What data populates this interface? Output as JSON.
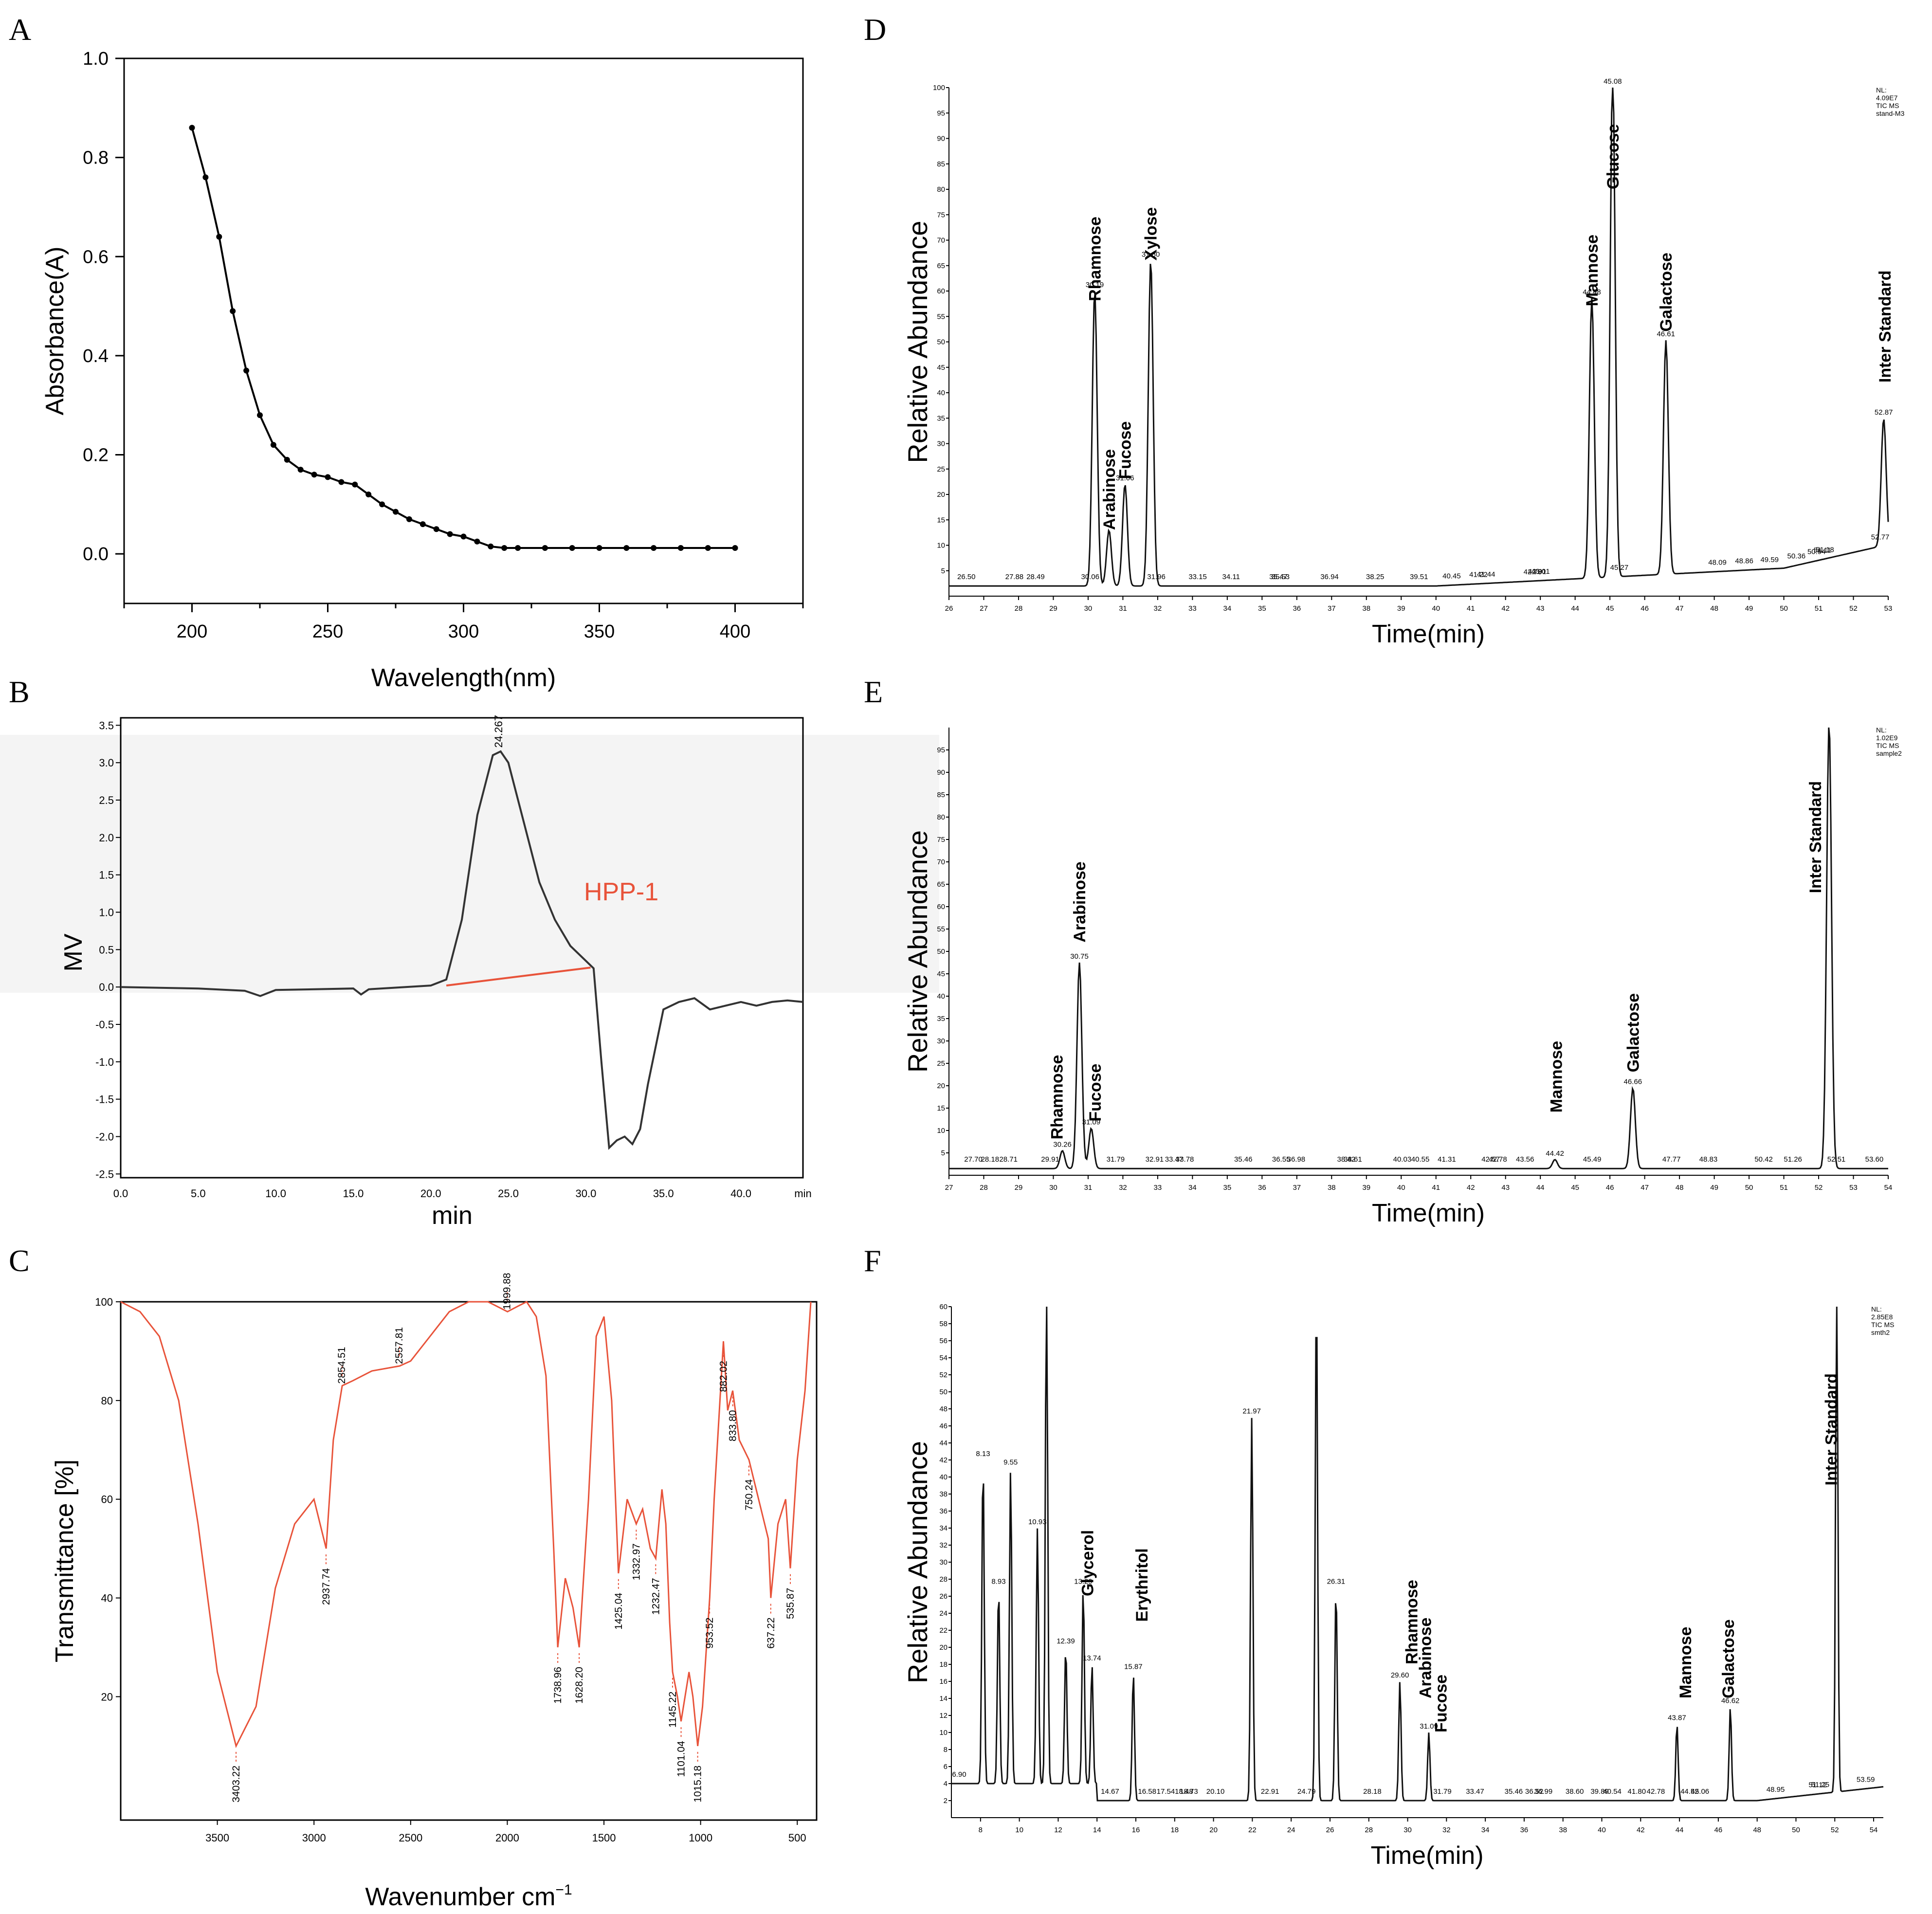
{
  "colors": {
    "ink": "#000000",
    "ir_red": "#e8533a",
    "grey_band": "#f3f3f3"
  },
  "chart_data": [
    {
      "panel": "A",
      "type": "line",
      "xlabel": "Wavelength(nm)",
      "ylabel": "Absorbance(A)",
      "xlim": [
        175,
        425
      ],
      "ylim": [
        -0.1,
        1.0
      ],
      "x_ticks": [
        "200",
        "250",
        "300",
        "350",
        "400"
      ],
      "y_ticks": [
        "0.0",
        "0.2",
        "0.4",
        "0.6",
        "0.8",
        "1.0"
      ],
      "markers": "filled-circles",
      "x": [
        200,
        205,
        210,
        215,
        220,
        225,
        230,
        235,
        240,
        245,
        250,
        255,
        260,
        265,
        270,
        275,
        280,
        285,
        290,
        295,
        300,
        305,
        310,
        315,
        320,
        330,
        340,
        350,
        360,
        370,
        380,
        390,
        400
      ],
      "y": [
        0.86,
        0.76,
        0.64,
        0.49,
        0.37,
        0.28,
        0.22,
        0.19,
        0.17,
        0.16,
        0.155,
        0.145,
        0.14,
        0.12,
        0.1,
        0.085,
        0.07,
        0.06,
        0.05,
        0.04,
        0.035,
        0.025,
        0.015,
        0.012,
        0.012,
        0.012,
        0.012,
        0.012,
        0.012,
        0.012,
        0.012,
        0.012,
        0.012
      ]
    },
    {
      "panel": "B",
      "type": "line",
      "xlabel": "min",
      "ylabel": "MV",
      "xlim": [
        0,
        44
      ],
      "ylim": [
        -2.55,
        3.6
      ],
      "x_ticks": [
        "0.0",
        "5.0",
        "10.0",
        "15.0",
        "20.0",
        "25.0",
        "30.0",
        "35.0",
        "40.0",
        "min"
      ],
      "y_ticks": [
        "3.5",
        "3.0",
        "2.5",
        "2.0",
        "1.5",
        "1.0",
        "0.5",
        "0.0",
        "-0.5",
        "-1.0",
        "-1.5",
        "-2.0",
        "-2.5"
      ],
      "peak_label": "24.267",
      "series_label": "HPP-1",
      "x": [
        0,
        5,
        8,
        9,
        10,
        15,
        15.5,
        16,
        20,
        21,
        22,
        23,
        24,
        24.5,
        25,
        26,
        27,
        28,
        29,
        30,
        30.5,
        31,
        31.5,
        32,
        32.5,
        33,
        33.5,
        34,
        35,
        36,
        37,
        38,
        39,
        40,
        41,
        42,
        43,
        44
      ],
      "y": [
        0,
        -0.02,
        -0.05,
        -0.12,
        -0.04,
        -0.02,
        -0.1,
        -0.03,
        0.02,
        0.1,
        0.9,
        2.3,
        3.1,
        3.15,
        3.0,
        2.2,
        1.4,
        0.9,
        0.55,
        0.35,
        0.25,
        -1.0,
        -2.15,
        -2.05,
        -2.0,
        -2.1,
        -1.9,
        -1.3,
        -0.3,
        -0.2,
        -0.15,
        -0.3,
        -0.25,
        -0.2,
        -0.25,
        -0.2,
        -0.18,
        -0.2
      ]
    },
    {
      "panel": "C",
      "type": "line",
      "xlabel": "Wavenumber cm",
      "xlabel_sup": "−1",
      "ylabel": "Transmittance [%]",
      "xlim": [
        4000,
        400
      ],
      "ylim": [
        -5,
        100
      ],
      "x_ticks": [
        "3500",
        "3000",
        "2500",
        "2000",
        "1500",
        "1000",
        "500"
      ],
      "y_ticks": [
        "20",
        "40",
        "60",
        "80",
        "100"
      ],
      "peak_labels": [
        "3403.22",
        "2937.74",
        "2854.51",
        "2557.81",
        "1999.88",
        "1738.96",
        "1628.20",
        "1425.04",
        "1332.97",
        "1232.47",
        "1145.22",
        "1101.04",
        "1015.18",
        "953.52",
        "882.02",
        "833.80",
        "750.24",
        "637.22",
        "535.87"
      ],
      "x": [
        4000,
        3900,
        3800,
        3700,
        3600,
        3500,
        3403,
        3300,
        3200,
        3100,
        3000,
        2937,
        2900,
        2854,
        2800,
        2700,
        2557,
        2500,
        2400,
        2300,
        2200,
        2100,
        1999,
        1950,
        1900,
        1850,
        1800,
        1760,
        1739,
        1700,
        1660,
        1628,
        1580,
        1540,
        1500,
        1460,
        1425,
        1380,
        1333,
        1300,
        1260,
        1232,
        1200,
        1180,
        1160,
        1145,
        1120,
        1101,
        1060,
        1040,
        1015,
        990,
        953,
        930,
        900,
        882,
        860,
        834,
        800,
        750,
        700,
        650,
        637,
        600,
        560,
        536,
        500,
        460,
        430
      ],
      "y": [
        100,
        98,
        93,
        80,
        55,
        25,
        10,
        18,
        42,
        55,
        60,
        50,
        72,
        83,
        84,
        86,
        87,
        88,
        93,
        98,
        100,
        100,
        98,
        99,
        100,
        97,
        85,
        50,
        30,
        44,
        38,
        30,
        60,
        93,
        97,
        80,
        45,
        60,
        55,
        58,
        50,
        48,
        62,
        55,
        35,
        25,
        20,
        15,
        25,
        20,
        10,
        18,
        40,
        60,
        80,
        92,
        78,
        82,
        72,
        68,
        60,
        52,
        40,
        55,
        60,
        46,
        68,
        82,
        100
      ]
    },
    {
      "panel": "D",
      "type": "line",
      "xlabel": "Time(min)",
      "ylabel": "Relative Abundance",
      "xlim": [
        26,
        53
      ],
      "ylim": [
        0,
        100
      ],
      "x_ticks": [
        "26",
        "27",
        "28",
        "29",
        "30",
        "31",
        "32",
        "33",
        "34",
        "35",
        "36",
        "37",
        "38",
        "39",
        "40",
        "41",
        "42",
        "43",
        "44",
        "45",
        "46",
        "47",
        "48",
        "49",
        "50",
        "51",
        "52",
        "53"
      ],
      "y_ticks": [
        "5",
        "10",
        "15",
        "20",
        "25",
        "30",
        "35",
        "40",
        "45",
        "50",
        "55",
        "60",
        "65",
        "70",
        "75",
        "80",
        "85",
        "90",
        "95",
        "100"
      ],
      "info": [
        "NL:",
        "4.09E7",
        "TIC MS",
        "stand-M3"
      ],
      "peaks": [
        {
          "time": 30.19,
          "label": "30.19",
          "height": 58,
          "sugar": "Rhamnose"
        },
        {
          "time": 30.6,
          "label": "",
          "height": 11,
          "sugar": "Arabinose"
        },
        {
          "time": 31.06,
          "label": "31.06",
          "height": 20,
          "sugar": "Fucose"
        },
        {
          "time": 31.8,
          "label": "31.80",
          "height": 64,
          "sugar": "Xylose"
        },
        {
          "time": 44.48,
          "label": "44.48",
          "height": 55,
          "sugar": "Mannose"
        },
        {
          "time": 45.08,
          "label": "45.08",
          "height": 100,
          "sugar": "Glucose"
        },
        {
          "time": 46.61,
          "label": "46.61",
          "height": 46,
          "sugar": "Galactose"
        },
        {
          "time": 52.87,
          "label": "52.87",
          "height": 25,
          "sugar": "Inter Standard"
        }
      ],
      "minor_labels": [
        "26.50",
        "27.88",
        "28.49",
        "30.06",
        "31.96",
        "33.15",
        "34.11",
        "35.47",
        "35.53",
        "36.94",
        "38.25",
        "39.51",
        "40.45",
        "41.22",
        "41.44",
        "42.78",
        "42.91",
        "43.01",
        "45.27",
        "48.09",
        "48.86",
        "49.59",
        "50.36",
        "50.94",
        "51.11",
        "51.18",
        "52.77"
      ]
    },
    {
      "panel": "E",
      "type": "line",
      "xlabel": "Time(min)",
      "ylabel": "Relative Abundance",
      "xlim": [
        27,
        54
      ],
      "ylim": [
        0,
        100
      ],
      "x_ticks": [
        "27",
        "28",
        "29",
        "30",
        "31",
        "32",
        "33",
        "34",
        "35",
        "36",
        "37",
        "38",
        "39",
        "40",
        "41",
        "42",
        "43",
        "44",
        "45",
        "46",
        "47",
        "48",
        "49",
        "50",
        "51",
        "52",
        "53",
        "54"
      ],
      "y_ticks": [
        "5",
        "10",
        "15",
        "20",
        "25",
        "30",
        "35",
        "40",
        "45",
        "50",
        "55",
        "60",
        "65",
        "70",
        "75",
        "80",
        "85",
        "90",
        "95"
      ],
      "info": [
        "NL:",
        "1.02E9",
        "TIC MS",
        "sample2"
      ],
      "peaks": [
        {
          "time": 30.26,
          "label": "30.26",
          "height": 4,
          "sugar": "Rhamnose"
        },
        {
          "time": 30.75,
          "label": "30.75",
          "height": 46,
          "sugar": "Arabinose"
        },
        {
          "time": 31.09,
          "label": "31.09",
          "height": 9,
          "sugar": "Fucose"
        },
        {
          "time": 44.42,
          "label": "44.42",
          "height": 2,
          "sugar": "Mannose"
        },
        {
          "time": 46.66,
          "label": "46.66",
          "height": 18,
          "sugar": "Galactose"
        },
        {
          "time": 52.3,
          "label": "",
          "height": 100,
          "sugar": "Inter Standard"
        }
      ],
      "minor_labels": [
        "27.70",
        "28.18",
        "28.71",
        "29.91",
        "31.79",
        "32.91",
        "33.47",
        "33.78",
        "35.46",
        "36.55",
        "36.98",
        "38.42",
        "38.61",
        "40.03",
        "40.55",
        "41.31",
        "42.57",
        "42.78",
        "43.56",
        "45.49",
        "47.77",
        "48.83",
        "50.42",
        "51.26",
        "52.51",
        "53.60"
      ]
    },
    {
      "panel": "F",
      "type": "line",
      "xlabel": "Time(min)",
      "ylabel": "Relative Abundance",
      "xlim": [
        6.5,
        54.5
      ],
      "ylim": [
        0,
        60
      ],
      "x_ticks": [
        "8",
        "10",
        "12",
        "14",
        "16",
        "18",
        "20",
        "22",
        "24",
        "26",
        "28",
        "30",
        "32",
        "34",
        "36",
        "38",
        "40",
        "42",
        "44",
        "46",
        "48",
        "50",
        "52",
        "54"
      ],
      "y_ticks": [
        "2",
        "4",
        "6",
        "8",
        "10",
        "12",
        "14",
        "16",
        "18",
        "20",
        "22",
        "24",
        "26",
        "28",
        "30",
        "32",
        "34",
        "36",
        "38",
        "40",
        "42",
        "44",
        "46",
        "48",
        "50",
        "52",
        "54",
        "56",
        "58",
        "60"
      ],
      "info": [
        "NL:",
        "2.85E8",
        "TIC MS",
        "smth2"
      ],
      "sugar_labels": [
        "Glycerol",
        "Erythritol",
        "Rhamnose",
        "Arabinose",
        "Fucose",
        "Mannose",
        "Galactose",
        "Inter Standard"
      ],
      "peaks": [
        {
          "time": 8.13,
          "label": "8.13",
          "height": 38
        },
        {
          "time": 8.93,
          "label": "8.93",
          "height": 23
        },
        {
          "time": 9.55,
          "label": "9.55",
          "height": 37
        },
        {
          "time": 10.93,
          "label": "10.93",
          "height": 30
        },
        {
          "time": 11.4,
          "label": "",
          "height": 60
        },
        {
          "time": 12.39,
          "label": "12.39",
          "height": 16
        },
        {
          "time": 13.29,
          "label": "13.29",
          "height": 23
        },
        {
          "time": 13.74,
          "label": "13.74",
          "height": 14
        },
        {
          "time": 15.87,
          "label": "15.87",
          "height": 15
        },
        {
          "time": 21.97,
          "label": "21.97",
          "height": 45
        },
        {
          "time": 25.3,
          "label": "",
          "height": 60
        },
        {
          "time": 26.31,
          "label": "26.31",
          "height": 25
        },
        {
          "time": 29.6,
          "label": "29.60",
          "height": 14
        },
        {
          "time": 31.09,
          "label": "31.09",
          "height": 8
        },
        {
          "time": 43.87,
          "label": "43.87",
          "height": 9
        },
        {
          "time": 46.62,
          "label": "46.62",
          "height": 11
        },
        {
          "time": 52.1,
          "label": "",
          "height": 60
        }
      ],
      "minor_labels": [
        "6.90",
        "14.67",
        "16.58",
        "17.54",
        "18.48",
        "18.73",
        "20.10",
        "22.91",
        "24.79",
        "28.18",
        "31.79",
        "33.47",
        "35.46",
        "36.52",
        "36.99",
        "38.60",
        "39.89",
        "40.54",
        "41.80",
        "42.78",
        "44.52",
        "45.06",
        "48.95",
        "51.12",
        "51.25",
        "53.59"
      ]
    }
  ]
}
